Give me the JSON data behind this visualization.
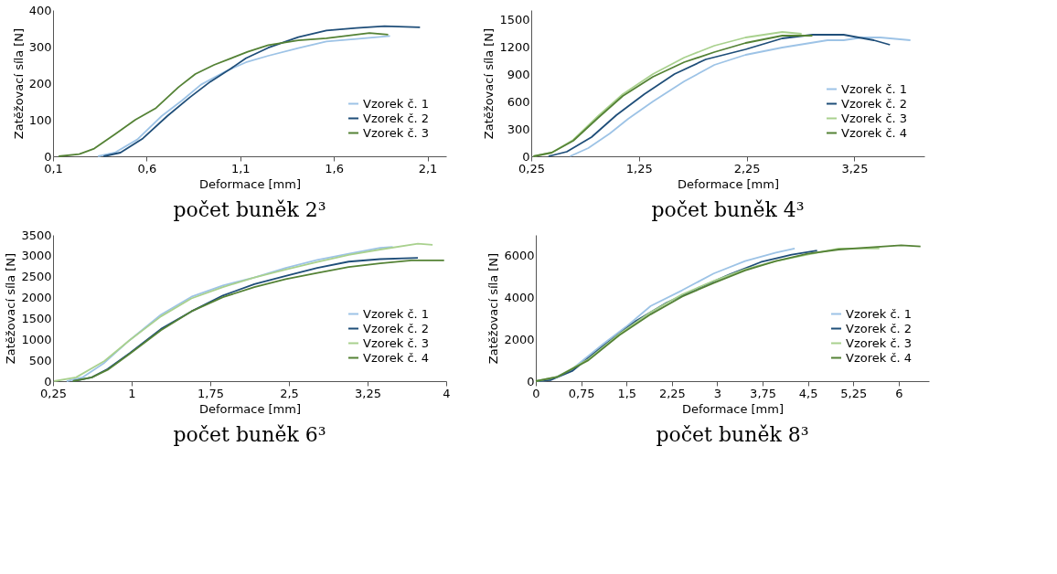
{
  "chart_data": [
    {
      "type": "line",
      "title": "počet buněk 2³",
      "xlabel": "Deformace [mm]",
      "ylabel": "Zatěžovací síla [N]",
      "legend": "bottom right",
      "grid": false,
      "xlim": [
        0.1,
        2.2
      ],
      "xticks": [
        {
          "value": 0.1,
          "label": "0,1"
        },
        {
          "value": 0.6,
          "label": "0,6"
        },
        {
          "value": 1.1,
          "label": "1,1"
        },
        {
          "value": 1.6,
          "label": "1,6"
        },
        {
          "value": 2.1,
          "label": "2,1"
        }
      ],
      "ylim": [
        0,
        400
      ],
      "yticks": [
        0,
        100,
        200,
        300,
        400
      ],
      "series": [
        {
          "name": "Vzorek č. 1",
          "color": "#9dc3e6",
          "x": [
            0.34,
            0.43,
            0.55,
            0.68,
            0.79,
            0.89,
            1.02,
            1.13,
            1.25,
            1.41,
            1.56,
            1.72,
            1.9
          ],
          "values": [
            0,
            10,
            46,
            110,
            153,
            196,
            232,
            257,
            275,
            296,
            314,
            321,
            329
          ]
        },
        {
          "name": "Vzorek č. 2",
          "color": "#1f4e79",
          "x": [
            0.37,
            0.46,
            0.58,
            0.71,
            0.83,
            0.94,
            1.05,
            1.13,
            1.25,
            1.41,
            1.56,
            1.72,
            1.87,
            2.06
          ],
          "values": [
            0,
            10,
            49,
            110,
            161,
            204,
            240,
            268,
            297,
            326,
            344,
            351,
            356,
            353
          ]
        },
        {
          "name": "Vzorek č. 3",
          "color": "#548235",
          "x": [
            0.13,
            0.24,
            0.32,
            0.43,
            0.54,
            0.65,
            0.77,
            0.86,
            0.96,
            1.05,
            1.14,
            1.25,
            1.41,
            1.56,
            1.72,
            1.79,
            1.89
          ],
          "values": [
            0,
            6,
            21,
            60,
            100,
            132,
            189,
            225,
            250,
            268,
            286,
            304,
            317,
            323,
            333,
            337,
            333
          ]
        }
      ]
    },
    {
      "type": "line",
      "title": "počet buněk 4³",
      "xlabel": "Deformace [mm]",
      "ylabel": "Zatěžovací síla [N]",
      "legend": "bottom right",
      "grid": false,
      "xlim": [
        0.25,
        3.9
      ],
      "xticks": [
        {
          "value": 0.25,
          "label": "0,25"
        },
        {
          "value": 1.25,
          "label": "1,25"
        },
        {
          "value": 2.25,
          "label": "2,25"
        },
        {
          "value": 3.25,
          "label": "3,25"
        }
      ],
      "ylim": [
        0,
        1600
      ],
      "yticks": [
        0,
        300,
        600,
        900,
        1200,
        1500
      ],
      "series": [
        {
          "name": "Vzorek č. 1",
          "color": "#9dc3e6",
          "x": [
            0.61,
            0.78,
            0.98,
            1.15,
            1.38,
            1.67,
            1.95,
            2.24,
            2.58,
            3.0,
            3.15,
            3.32,
            3.49,
            3.77
          ],
          "values": [
            0,
            90,
            250,
            410,
            600,
            820,
            1000,
            1110,
            1190,
            1270,
            1270,
            1300,
            1300,
            1270
          ]
        },
        {
          "name": "Vzorek č. 2",
          "color": "#1f4e79",
          "x": [
            0.41,
            0.58,
            0.81,
            1.04,
            1.3,
            1.58,
            1.87,
            2.24,
            2.58,
            2.86,
            3.15,
            3.43,
            3.58
          ],
          "values": [
            0,
            50,
            210,
            450,
            680,
            900,
            1060,
            1170,
            1290,
            1330,
            1330,
            1270,
            1220
          ]
        },
        {
          "name": "Vzorek č. 3",
          "color": "#a9d18e",
          "x": [
            0.27,
            0.44,
            0.64,
            0.87,
            1.1,
            1.38,
            1.67,
            1.95,
            2.24,
            2.58,
            2.76
          ],
          "values": [
            0,
            40,
            180,
            440,
            680,
            900,
            1080,
            1210,
            1300,
            1360,
            1340
          ]
        },
        {
          "name": "Vzorek č. 4",
          "color": "#548235",
          "x": [
            0.27,
            0.44,
            0.64,
            0.87,
            1.1,
            1.38,
            1.67,
            1.95,
            2.24,
            2.58,
            2.86
          ],
          "values": [
            0,
            40,
            170,
            420,
            660,
            870,
            1030,
            1140,
            1240,
            1320,
            1320
          ]
        }
      ]
    },
    {
      "type": "line",
      "title": "počet buněk 6³",
      "xlabel": "Deformace [mm]",
      "ylabel": "Zatěžovací síla [N]",
      "legend": "bottom right",
      "grid": false,
      "xlim": [
        0.25,
        4
      ],
      "xticks": [
        {
          "value": 0.25,
          "label": "0,25"
        },
        1,
        {
          "value": 1.75,
          "label": "1,75"
        },
        {
          "value": 2.5,
          "label": "2,5"
        },
        {
          "value": 3.25,
          "label": "3,25"
        },
        4
      ],
      "ylim": [
        0,
        3500
      ],
      "yticks": [
        0,
        500,
        1000,
        1500,
        2000,
        2500,
        3000,
        3500
      ],
      "series": [
        {
          "name": "Vzorek č. 1",
          "color": "#9dc3e6",
          "x": [
            0.38,
            0.53,
            0.74,
            0.98,
            1.28,
            1.57,
            1.87,
            2.17,
            2.47,
            2.77,
            3.07,
            3.37,
            3.49
          ],
          "values": [
            0,
            90,
            440,
            980,
            1590,
            2020,
            2290,
            2480,
            2710,
            2900,
            3050,
            3190,
            3210
          ]
        },
        {
          "name": "Vzorek č. 2",
          "color": "#1f4e79",
          "x": [
            0.44,
            0.62,
            0.77,
            0.98,
            1.28,
            1.57,
            1.87,
            2.17,
            2.47,
            2.77,
            3.07,
            3.37,
            3.73
          ],
          "values": [
            0,
            90,
            290,
            670,
            1250,
            1670,
            2050,
            2320,
            2520,
            2710,
            2860,
            2920,
            2950
          ]
        },
        {
          "name": "Vzorek č. 3",
          "color": "#a9d18e",
          "x": [
            0.26,
            0.47,
            0.74,
            0.98,
            1.28,
            1.57,
            1.87,
            2.17,
            2.47,
            2.77,
            3.07,
            3.37,
            3.73,
            3.87
          ],
          "values": [
            0,
            90,
            480,
            980,
            1550,
            1980,
            2250,
            2480,
            2670,
            2850,
            3020,
            3150,
            3290,
            3260
          ]
        },
        {
          "name": "Vzorek č. 4",
          "color": "#548235",
          "x": [
            0.44,
            0.62,
            0.77,
            0.98,
            1.28,
            1.57,
            1.87,
            2.17,
            2.47,
            2.77,
            3.07,
            3.37,
            3.67,
            3.98
          ],
          "values": [
            0,
            90,
            270,
            650,
            1220,
            1670,
            2010,
            2250,
            2440,
            2590,
            2730,
            2820,
            2890,
            2890
          ]
        }
      ]
    },
    {
      "type": "line",
      "title": "počet buněk 8³",
      "xlabel": "Deformace [mm]",
      "ylabel": "Zatěžovací síla [N]",
      "legend": "bottom right",
      "grid": false,
      "xlim": [
        0,
        6.5
      ],
      "xticks": [
        0,
        {
          "value": 0.75,
          "label": "0,75"
        },
        {
          "value": 1.5,
          "label": "1,5"
        },
        {
          "value": 2.25,
          "label": "2,25"
        },
        3,
        {
          "value": 3.75,
          "label": "3,75"
        },
        {
          "value": 4.5,
          "label": "4,5"
        },
        {
          "value": 5.25,
          "label": "5,25"
        },
        6
      ],
      "ylim": [
        0,
        7000
      ],
      "yticks": [
        0,
        2000,
        4000,
        6000
      ],
      "series": [
        {
          "name": "Vzorek č. 1",
          "color": "#9dc3e6",
          "x": [
            0,
            0.24,
            0.61,
            1.12,
            1.49,
            1.9,
            2.42,
            2.94,
            3.46,
            3.97,
            4.28
          ],
          "values": [
            0,
            50,
            600,
            1800,
            2600,
            3600,
            4350,
            5150,
            5750,
            6150,
            6350
          ]
        },
        {
          "name": "Vzorek č. 2",
          "color": "#1f4e79",
          "x": [
            0,
            0.24,
            0.61,
            1.12,
            1.64,
            2.16,
            2.68,
            3.2,
            3.72,
            4.23,
            4.65
          ],
          "values": [
            0,
            50,
            500,
            1700,
            2850,
            3750,
            4450,
            5100,
            5700,
            6050,
            6250
          ]
        },
        {
          "name": "Vzorek č. 3",
          "color": "#a9d18e",
          "x": [
            0,
            0.35,
            0.87,
            1.38,
            1.9,
            2.42,
            2.94,
            3.46,
            3.97,
            4.49,
            5.01,
            5.68
          ],
          "values": [
            0,
            200,
            1050,
            2250,
            3300,
            4150,
            4800,
            5350,
            5750,
            6050,
            6350,
            6350
          ]
        },
        {
          "name": "Vzorek č. 4",
          "color": "#548235",
          "x": [
            0,
            0.35,
            0.87,
            1.38,
            1.9,
            2.42,
            2.94,
            3.46,
            3.97,
            4.49,
            5.01,
            5.53,
            6.04,
            6.36
          ],
          "values": [
            0,
            200,
            1000,
            2200,
            3200,
            4050,
            4700,
            5300,
            5750,
            6100,
            6300,
            6400,
            6500,
            6450
          ]
        }
      ]
    }
  ]
}
